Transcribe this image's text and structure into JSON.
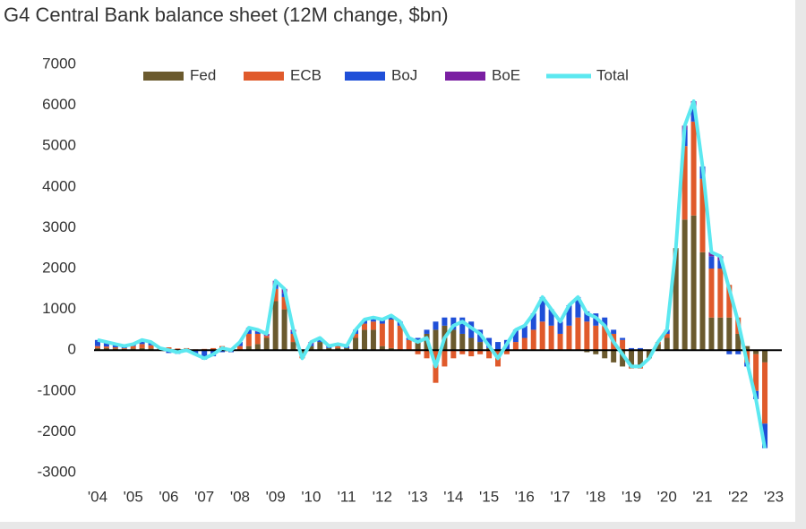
{
  "chart_data": {
    "type": "stacked_bar_line",
    "title": "G4 Central Bank balance sheet (12M change, $bn)",
    "categories": [
      "'04",
      null,
      null,
      null,
      "'05",
      null,
      null,
      null,
      "'06",
      null,
      null,
      null,
      "'07",
      null,
      null,
      null,
      "'08",
      null,
      null,
      null,
      "'09",
      null,
      null,
      null,
      "'10",
      null,
      null,
      null,
      "'11",
      null,
      null,
      null,
      "'12",
      null,
      null,
      null,
      "'13",
      null,
      null,
      null,
      "'14",
      null,
      null,
      null,
      "'15",
      null,
      null,
      null,
      "'16",
      null,
      null,
      null,
      "'17",
      null,
      null,
      null,
      "'18",
      null,
      null,
      null,
      "'19",
      null,
      null,
      null,
      "'20",
      null,
      null,
      null,
      "'21",
      null,
      null,
      null,
      "'22",
      null,
      null,
      null,
      "'23"
    ],
    "series": [
      {
        "name": "Fed",
        "color": "#6b5a2e",
        "values": [
          50,
          50,
          40,
          30,
          40,
          50,
          40,
          20,
          20,
          0,
          20,
          0,
          0,
          0,
          0,
          0,
          0,
          100,
          150,
          300,
          1200,
          1000,
          200,
          -100,
          100,
          200,
          50,
          50,
          50,
          300,
          500,
          500,
          100,
          50,
          0,
          0,
          200,
          400,
          500,
          600,
          500,
          400,
          300,
          200,
          50,
          0,
          0,
          0,
          0,
          0,
          0,
          0,
          0,
          0,
          0,
          -50,
          -100,
          -200,
          -300,
          -400,
          -400,
          -400,
          -200,
          150,
          300,
          2500,
          3200,
          3300,
          2400,
          800,
          800,
          800,
          400,
          100,
          -100,
          -300,
          null
        ]
      },
      {
        "name": "ECB",
        "color": "#e05a2b",
        "values": [
          50,
          40,
          30,
          20,
          60,
          100,
          80,
          30,
          50,
          40,
          30,
          20,
          30,
          50,
          100,
          50,
          100,
          300,
          250,
          50,
          300,
          300,
          200,
          -100,
          0,
          0,
          0,
          50,
          0,
          100,
          150,
          200,
          550,
          700,
          600,
          250,
          -100,
          -200,
          -800,
          -400,
          -200,
          -100,
          -150,
          -100,
          -200,
          -400,
          -100,
          200,
          300,
          500,
          700,
          600,
          400,
          600,
          800,
          700,
          600,
          600,
          400,
          250,
          -50,
          -50,
          0,
          50,
          100,
          0,
          1800,
          2300,
          1800,
          1200,
          1200,
          800,
          400,
          -300,
          -900,
          -1500,
          null
        ]
      },
      {
        "name": "BoJ",
        "color": "#1f4fd8",
        "values": [
          150,
          110,
          80,
          50,
          50,
          100,
          80,
          0,
          -70,
          -90,
          -50,
          -120,
          -230,
          -150,
          -50,
          -50,
          100,
          100,
          50,
          0,
          100,
          100,
          50,
          0,
          50,
          50,
          30,
          30,
          50,
          100,
          100,
          100,
          100,
          100,
          100,
          50,
          100,
          100,
          200,
          200,
          300,
          400,
          400,
          300,
          250,
          200,
          250,
          300,
          300,
          400,
          600,
          400,
          300,
          500,
          500,
          250,
          300,
          200,
          100,
          50,
          50,
          50,
          0,
          0,
          100,
          0,
          400,
          400,
          300,
          300,
          200,
          -100,
          -100,
          -100,
          -200,
          -600,
          null
        ]
      },
      {
        "name": "BoE",
        "color": "#7a1fa2",
        "values": [
          0,
          0,
          0,
          0,
          0,
          0,
          0,
          0,
          0,
          0,
          0,
          0,
          0,
          0,
          0,
          0,
          0,
          50,
          50,
          50,
          100,
          100,
          50,
          0,
          50,
          50,
          20,
          20,
          0,
          0,
          0,
          0,
          0,
          0,
          0,
          0,
          0,
          0,
          0,
          0,
          0,
          0,
          0,
          0,
          0,
          0,
          0,
          0,
          0,
          0,
          0,
          0,
          0,
          0,
          0,
          0,
          0,
          0,
          0,
          0,
          0,
          0,
          0,
          0,
          0,
          0,
          100,
          100,
          0,
          100,
          100,
          0,
          0,
          0,
          0,
          0,
          null
        ]
      },
      {
        "name": "Total",
        "color": "#5ce8f0",
        "line": true,
        "values": [
          250,
          200,
          150,
          100,
          150,
          250,
          200,
          50,
          0,
          -50,
          0,
          -100,
          -200,
          -100,
          50,
          0,
          200,
          550,
          500,
          400,
          1700,
          1500,
          500,
          -200,
          200,
          300,
          100,
          150,
          100,
          500,
          750,
          800,
          750,
          850,
          700,
          300,
          200,
          300,
          -400,
          300,
          600,
          700,
          550,
          400,
          100,
          -200,
          150,
          500,
          600,
          900,
          1300,
          1000,
          700,
          1100,
          1300,
          900,
          800,
          600,
          200,
          -100,
          -400,
          -400,
          -200,
          200,
          500,
          2500,
          5500,
          6100,
          4500,
          2400,
          2300,
          1500,
          700,
          -300,
          -1200,
          -2400,
          null
        ]
      }
    ],
    "ylim": [
      -3000,
      7000
    ],
    "yticks": [
      7000,
      6000,
      5000,
      4000,
      3000,
      2000,
      1000,
      0,
      -1000,
      -2000,
      -3000
    ],
    "grid": false
  }
}
